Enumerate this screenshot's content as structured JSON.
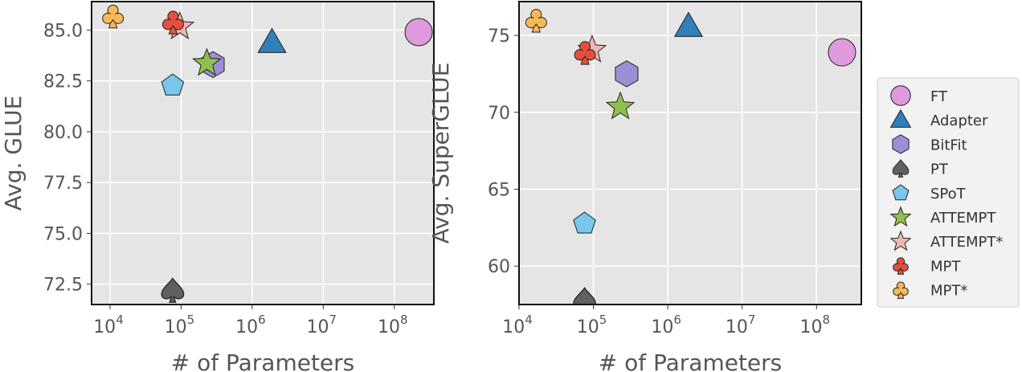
{
  "chart_data": [
    {
      "type": "scatter",
      "xlabel": "# of Parameters",
      "ylabel": "Avg. GLUE",
      "xscale": "log",
      "xlim": [
        5500,
        360000000
      ],
      "ylim": [
        71.5,
        86.4
      ],
      "xticks": [
        {
          "value": 10000,
          "base": "10",
          "exp": "4"
        },
        {
          "value": 100000,
          "base": "10",
          "exp": "5"
        },
        {
          "value": 1000000,
          "base": "10",
          "exp": "6"
        },
        {
          "value": 10000000,
          "base": "10",
          "exp": "7"
        },
        {
          "value": 100000000,
          "base": "10",
          "exp": "8"
        }
      ],
      "yticks": [
        {
          "value": 72.5,
          "label": "72.5"
        },
        {
          "value": 75.0,
          "label": "75.0"
        },
        {
          "value": 77.5,
          "label": "77.5"
        },
        {
          "value": 80.0,
          "label": "80.0"
        },
        {
          "value": 82.5,
          "label": "82.5"
        },
        {
          "value": 85.0,
          "label": "85.0"
        }
      ],
      "grid": true,
      "points": [
        {
          "method": "FT",
          "x": 220000000,
          "y": 84.9
        },
        {
          "method": "Adapter",
          "x": 1900000,
          "y": 84.4
        },
        {
          "method": "BitFit",
          "x": 280000,
          "y": 83.3
        },
        {
          "method": "PT",
          "x": 76000,
          "y": 72.2
        },
        {
          "method": "SPoT",
          "x": 76000,
          "y": 82.3
        },
        {
          "method": "ATTEMPT*",
          "x": 96000,
          "y": 85.2
        },
        {
          "method": "ATTEMPT",
          "x": 230000,
          "y": 83.4
        },
        {
          "method": "MPT",
          "x": 77000,
          "y": 85.4
        },
        {
          "method": "MPT*",
          "x": 11000,
          "y": 85.7
        }
      ]
    },
    {
      "type": "scatter",
      "xlabel": "# of Parameters",
      "ylabel": "Avg. SuperGLUE",
      "xscale": "log",
      "xlim": [
        10000,
        400000000
      ],
      "ylim": [
        57.5,
        77.2
      ],
      "xticks": [
        {
          "value": 10000,
          "base": "10",
          "exp": "4"
        },
        {
          "value": 100000,
          "base": "10",
          "exp": "5"
        },
        {
          "value": 1000000,
          "base": "10",
          "exp": "6"
        },
        {
          "value": 10000000,
          "base": "10",
          "exp": "7"
        },
        {
          "value": 100000000,
          "base": "10",
          "exp": "8"
        }
      ],
      "yticks": [
        {
          "value": 60,
          "label": "60"
        },
        {
          "value": 65,
          "label": "65"
        },
        {
          "value": 70,
          "label": "70"
        },
        {
          "value": 75,
          "label": "75"
        }
      ],
      "grid": true,
      "points": [
        {
          "method": "FT",
          "x": 220000000,
          "y": 73.9
        },
        {
          "method": "Adapter",
          "x": 1900000,
          "y": 75.6
        },
        {
          "method": "BitFit",
          "x": 280000,
          "y": 72.5
        },
        {
          "method": "PT",
          "x": 76000,
          "y": 57.8
        },
        {
          "method": "SPoT",
          "x": 76000,
          "y": 62.8
        },
        {
          "method": "ATTEMPT*",
          "x": 96000,
          "y": 74.1
        },
        {
          "method": "ATTEMPT",
          "x": 230000,
          "y": 70.4
        },
        {
          "method": "MPT",
          "x": 77000,
          "y": 73.9
        },
        {
          "method": "MPT*",
          "x": 17000,
          "y": 76.0
        }
      ]
    }
  ],
  "legend": {
    "placement": "right",
    "entries": [
      {
        "method": "FT",
        "label": "FT",
        "marker": "circle",
        "color": "#df99dd"
      },
      {
        "method": "Adapter",
        "label": "Adapter",
        "marker": "triangle",
        "color": "#2f7fba"
      },
      {
        "method": "BitFit",
        "label": "BitFit",
        "marker": "hexagon",
        "color": "#9a8fd6"
      },
      {
        "method": "PT",
        "label": "PT",
        "marker": "spade",
        "color": "#606060"
      },
      {
        "method": "SPoT",
        "label": "SPoT",
        "marker": "pentagon",
        "color": "#79c7ea"
      },
      {
        "method": "ATTEMPT",
        "label": "ATTEMPT",
        "marker": "star",
        "color": "#8fc04f"
      },
      {
        "method": "ATTEMPT*",
        "label": "ATTEMPT*",
        "marker": "star",
        "color": "#f2b6b6"
      },
      {
        "method": "MPT",
        "label": "MPT",
        "marker": "club",
        "color": "#e3503d"
      },
      {
        "method": "MPT*",
        "label": "MPT*",
        "marker": "club",
        "color": "#f7b955"
      }
    ]
  },
  "colors": {
    "axes_background": "#e5e5e5",
    "grid": "#ffffff",
    "text": "#555555",
    "marker_edge": "#222222"
  }
}
